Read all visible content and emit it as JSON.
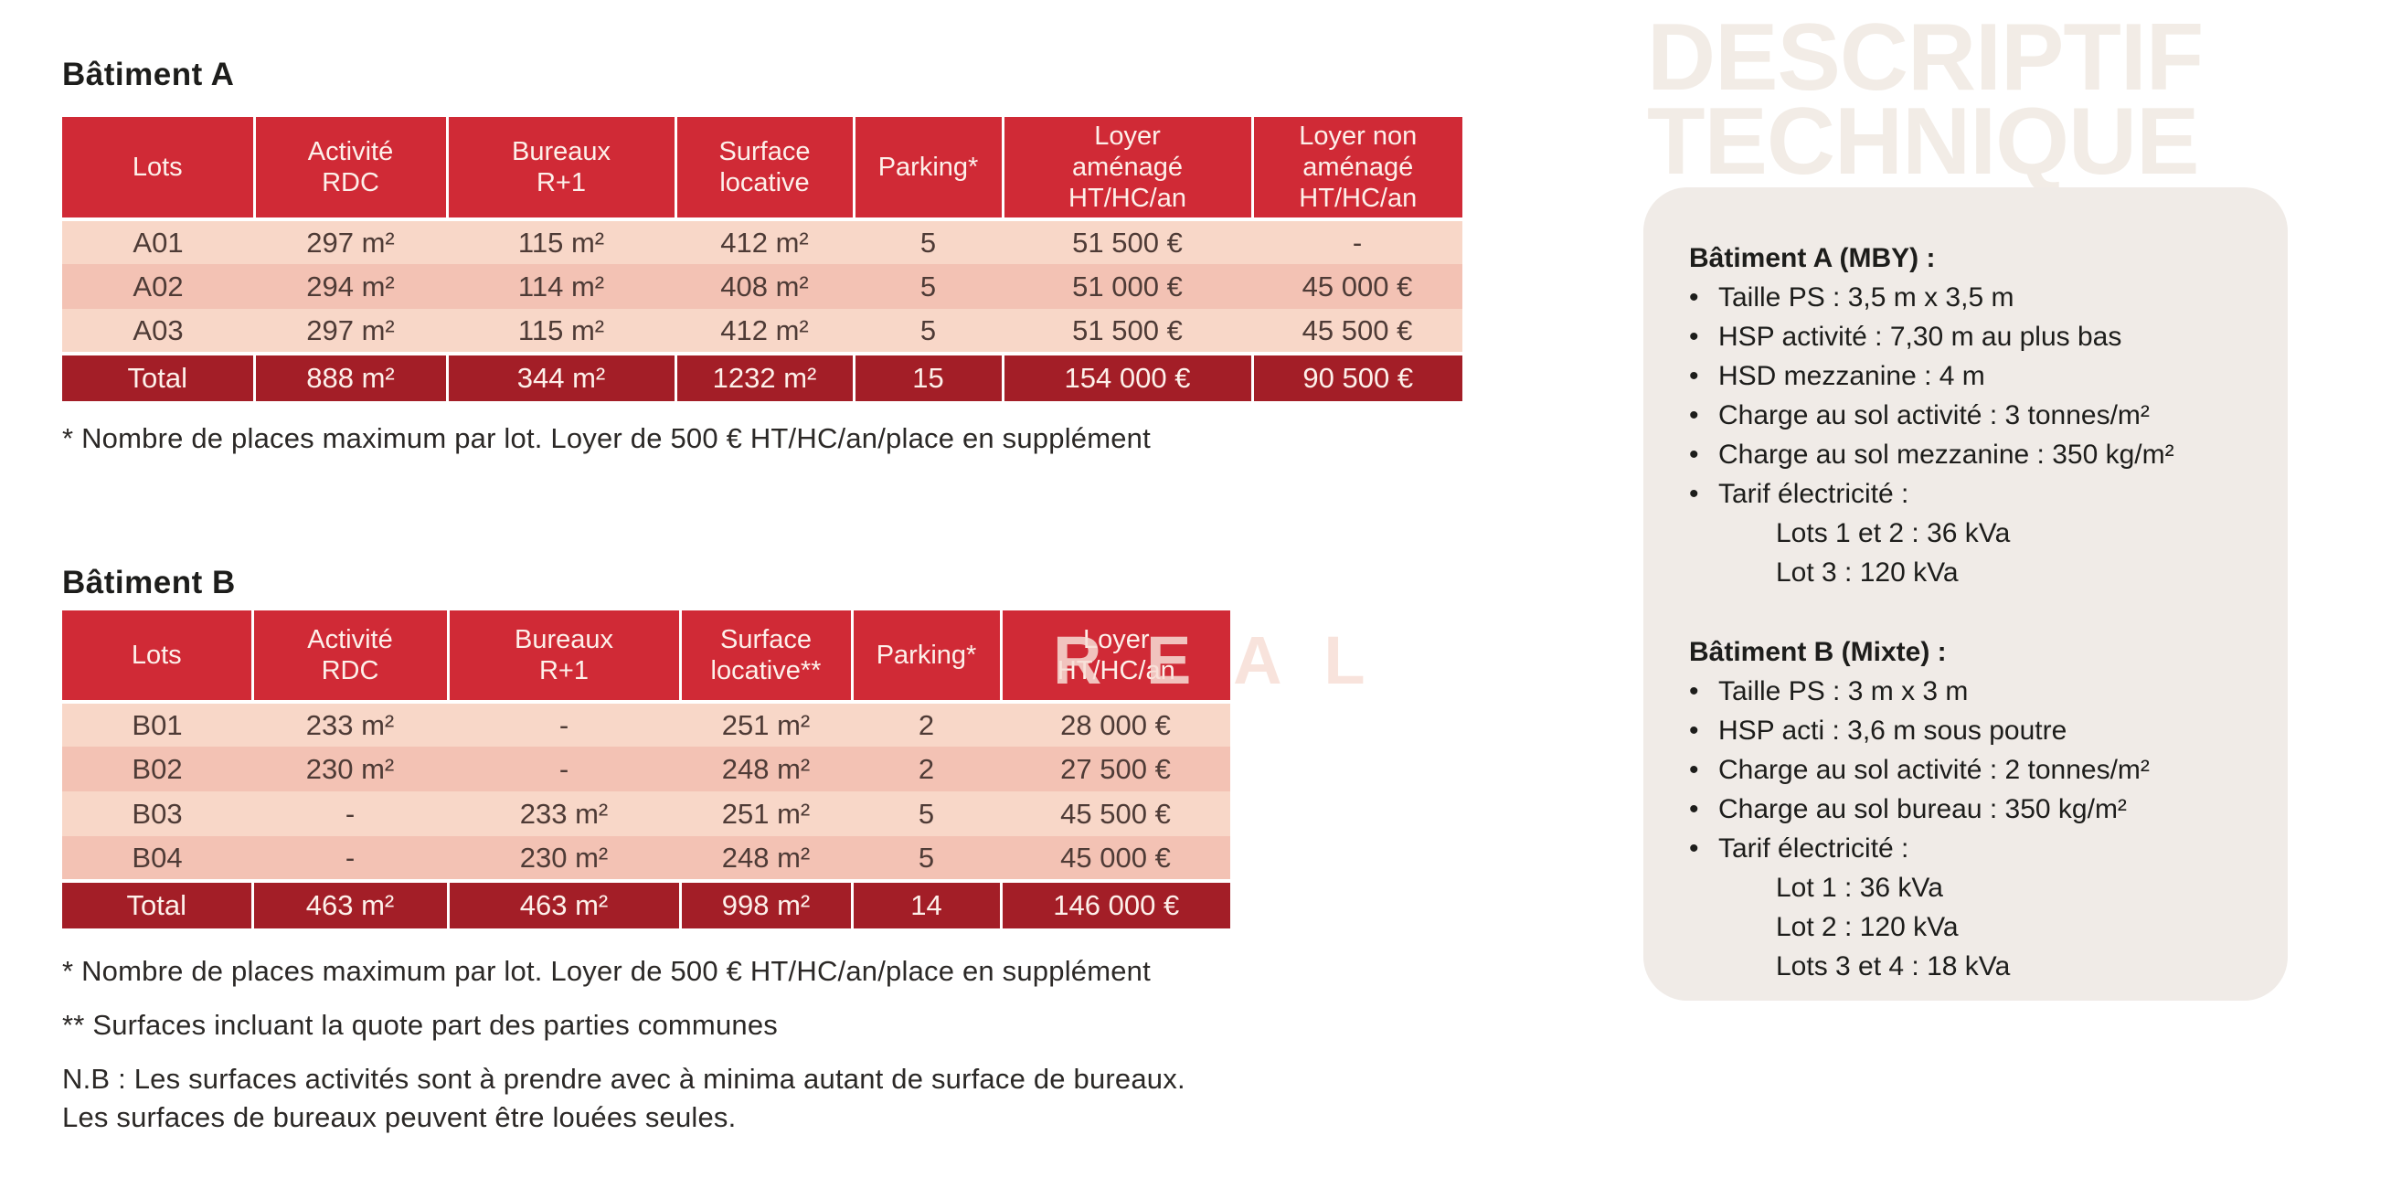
{
  "colors": {
    "header_red": "#d02a36",
    "total_red": "#a31e27",
    "row_light": "#f8d7c8",
    "row_dark": "#f3c2b4",
    "cell_text": "#4e3b36",
    "header_text": "#fdf0ea",
    "sidebar_bg": "#f0ebe7",
    "watermark_beige": "#f2ece6",
    "watermark_pink": "#f7ded6"
  },
  "watermarks": {
    "descriptif": "DESCRIPTIF\nTECHNIQUE",
    "real": "R E A L"
  },
  "table_a": {
    "title": "Bâtiment A",
    "columns": [
      "Lots",
      "Activité\nRDC",
      "Bureaux\nR+1",
      "Surface\nlocative",
      "Parking*",
      "Loyer\naménagé\nHT/HC/an",
      "Loyer non\naménagé\nHT/HC/an"
    ],
    "rows": [
      [
        "A01",
        "297 m²",
        "115 m²",
        "412 m²",
        "5",
        "51 500 €",
        "-"
      ],
      [
        "A02",
        "294 m²",
        "114 m²",
        "408 m²",
        "5",
        "51 000 €",
        "45 000 €"
      ],
      [
        "A03",
        "297 m²",
        "115 m²",
        "412 m²",
        "5",
        "51 500 €",
        "45 500 €"
      ]
    ],
    "total": [
      "Total",
      "888 m²",
      "344 m²",
      "1232 m²",
      "15",
      "154 000 €",
      "90 500 €"
    ],
    "footnote": "* Nombre de places maximum par lot. Loyer de 500 € HT/HC/an/place en supplément"
  },
  "table_b": {
    "title": "Bâtiment B",
    "columns": [
      "Lots",
      "Activité\nRDC",
      "Bureaux\nR+1",
      "Surface\nlocative**",
      "Parking*",
      "Loyer\nHT/HC/an"
    ],
    "rows": [
      [
        "B01",
        "233 m²",
        "-",
        "251 m²",
        "2",
        "28 000 €"
      ],
      [
        "B02",
        "230 m²",
        "-",
        "248 m²",
        "2",
        "27 500 €"
      ],
      [
        "B03",
        "-",
        "233 m²",
        "251 m²",
        "5",
        "45 500 €"
      ],
      [
        "B04",
        "-",
        "230 m²",
        "248 m²",
        "5",
        "45 000 €"
      ]
    ],
    "total": [
      "Total",
      "463 m²",
      "463 m²",
      "998 m²",
      "14",
      "146 000 €"
    ],
    "footnotes": [
      "* Nombre de places maximum par lot. Loyer de 500 € HT/HC/an/place en supplément",
      "** Surfaces incluant la quote part des parties communes",
      "N.B : Les surfaces activités sont à prendre avec à minima autant de surface de bureaux.\nLes surfaces de bureaux peuvent être louées seules."
    ]
  },
  "sidebar": {
    "sections": [
      {
        "heading": "Bâtiment A (MBY) :",
        "bullets": [
          "Taille PS : 3,5 m x 3,5 m",
          "HSP activité : 7,30 m au plus bas",
          "HSD mezzanine : 4 m",
          "Charge au sol activité : 3 tonnes/m²",
          "Charge au sol mezzanine : 350 kg/m²",
          "Tarif électricité :"
        ],
        "sub_lines": [
          "Lots 1 et 2 : 36 kVa",
          "Lot 3 : 120 kVa"
        ]
      },
      {
        "heading": "Bâtiment B (Mixte) :",
        "bullets": [
          "Taille PS : 3 m x 3 m",
          "HSP acti : 3,6 m sous poutre",
          "Charge au sol activité : 2 tonnes/m²",
          "Charge au sol bureau : 350 kg/m²",
          "Tarif électricité :"
        ],
        "sub_lines": [
          "Lot 1 : 36 kVa",
          "Lot 2 : 120 kVa",
          "Lots 3 et 4 : 18 kVa"
        ]
      }
    ]
  }
}
